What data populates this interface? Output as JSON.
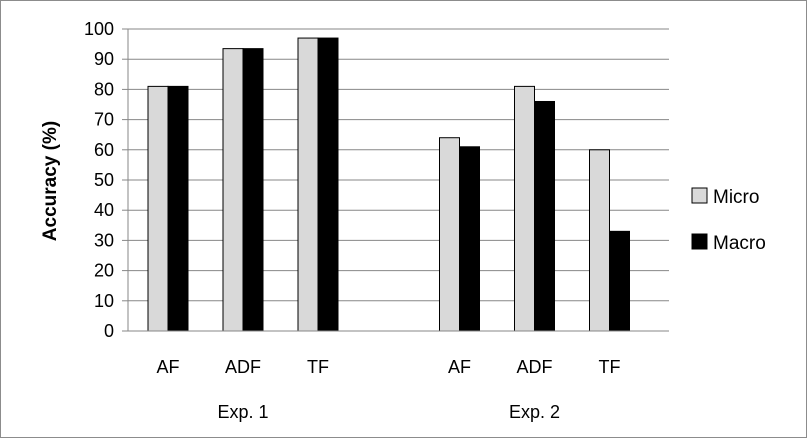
{
  "chart_data": {
    "type": "bar",
    "title": "",
    "xlabel": "",
    "ylabel": "Accuracy (%)",
    "ylim": [
      0,
      100
    ],
    "yticks": [
      0,
      10,
      20,
      30,
      40,
      50,
      60,
      70,
      80,
      90,
      100
    ],
    "grid": true,
    "legend_position": "right",
    "groups": [
      {
        "label": "Exp. 1",
        "categories": [
          "AF",
          "ADF",
          "TF"
        ]
      },
      {
        "label": "Exp. 2",
        "categories": [
          "AF",
          "ADF",
          "TF"
        ]
      }
    ],
    "series": [
      {
        "name": "Micro",
        "color": "#d9d9d9",
        "values": [
          81,
          93.5,
          97,
          64,
          81,
          60
        ]
      },
      {
        "name": "Macro",
        "color": "#000000",
        "values": [
          81,
          93.5,
          97,
          61,
          76,
          33
        ]
      }
    ]
  }
}
